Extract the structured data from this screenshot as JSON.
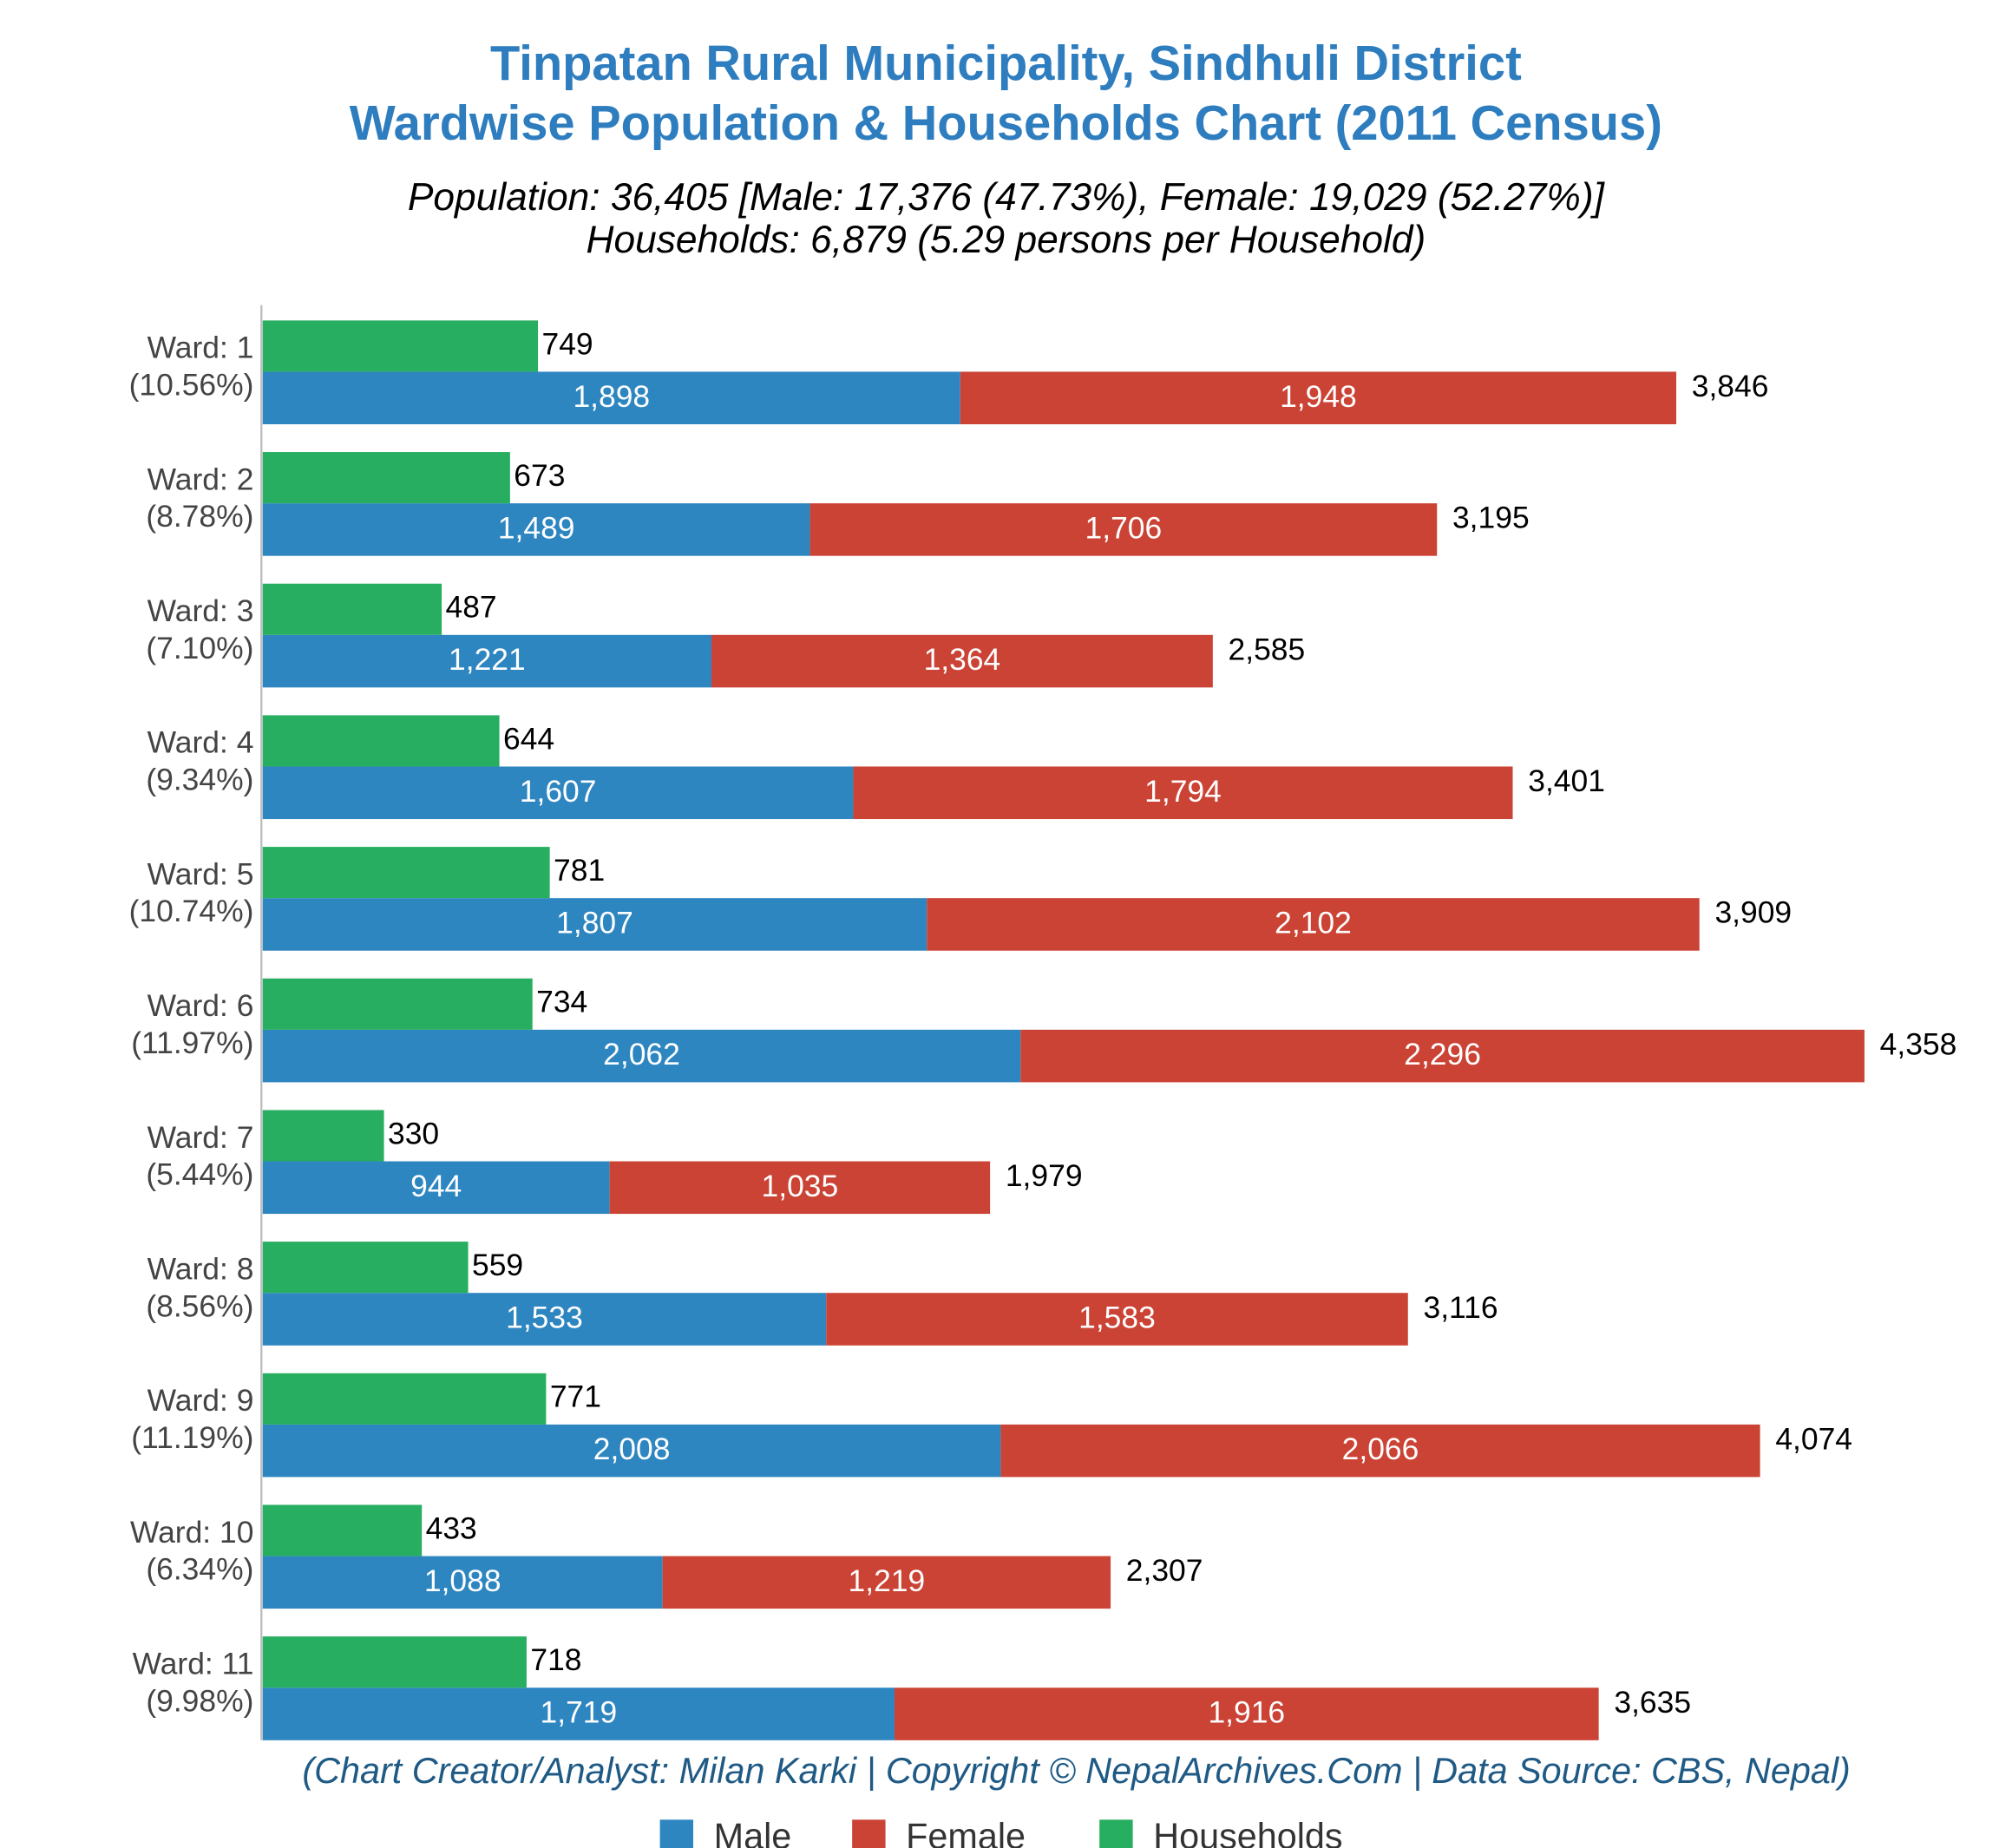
{
  "chart_data": {
    "type": "bar",
    "orientation": "horizontal",
    "title": [
      "Tinpatan Rural Municipality, Sindhuli District",
      "Wardwise Population & Households Chart (2011 Census)"
    ],
    "subtitle": [
      "Population: 36,405 [Male: 17,376 (47.73%), Female: 19,029 (52.27%)]",
      "Households: 6,879 (5.29 persons per Household)"
    ],
    "footer": "(Chart Creator/Analyst: Milan Karki | Copyright © NepalArchives.Com | Data Source: CBS, Nepal)",
    "categories": [
      "Ward: 1",
      "Ward: 2",
      "Ward: 3",
      "Ward: 4",
      "Ward: 5",
      "Ward: 6",
      "Ward: 7",
      "Ward: 8",
      "Ward: 9",
      "Ward: 10",
      "Ward: 11"
    ],
    "category_shares": [
      "(10.56%)",
      "(8.78%)",
      "(7.10%)",
      "(9.34%)",
      "(10.74%)",
      "(11.97%)",
      "(5.44%)",
      "(8.56%)",
      "(11.19%)",
      "(6.34%)",
      "(9.98%)"
    ],
    "series": [
      {
        "name": "Male",
        "color": "#2e86c1",
        "stack": "population",
        "values": [
          1898,
          1489,
          1221,
          1607,
          1807,
          2062,
          944,
          1533,
          2008,
          1088,
          1719
        ],
        "value_labels": [
          "1,898",
          "1,489",
          "1,221",
          "1,607",
          "1,807",
          "2,062",
          "944",
          "1,533",
          "2,008",
          "1,088",
          "1,719"
        ]
      },
      {
        "name": "Female",
        "color": "#cb4335",
        "stack": "population",
        "values": [
          1948,
          1706,
          1364,
          1794,
          2102,
          2296,
          1035,
          1583,
          2066,
          1219,
          1916
        ],
        "value_labels": [
          "1,948",
          "1,706",
          "1,364",
          "1,794",
          "2,102",
          "2,296",
          "1,035",
          "1,583",
          "2,066",
          "1,219",
          "1,916"
        ]
      },
      {
        "name": "Households",
        "color": "#27ae60",
        "stack": "households",
        "values": [
          749,
          673,
          487,
          644,
          781,
          734,
          330,
          559,
          771,
          433,
          718
        ]
      }
    ],
    "totals": [
      3846,
      3195,
      2585,
      3401,
      3909,
      4358,
      1979,
      3116,
      4074,
      2307,
      3635
    ],
    "total_labels": [
      "3,846",
      "3,195",
      "2,585",
      "3,401",
      "3,909",
      "4,358",
      "1,979",
      "3,116",
      "4,074",
      "2,307",
      "3,635"
    ],
    "legend": "bottom"
  }
}
